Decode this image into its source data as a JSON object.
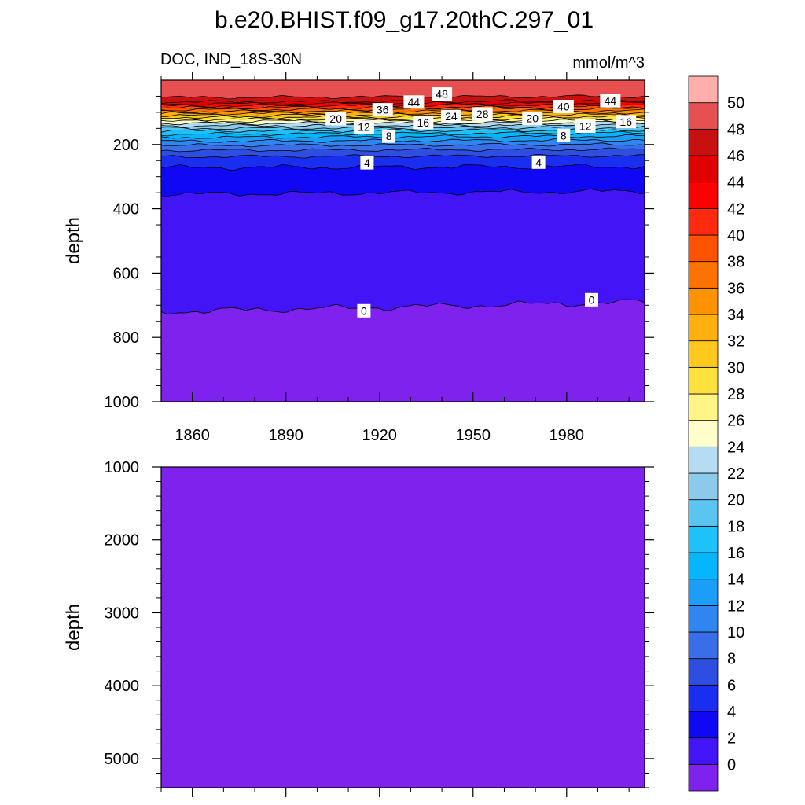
{
  "figure": {
    "title": "b.e20.BHIST.f09_g17.20thC.297_01",
    "subtitle_left": "DOC, IND_18S-30N",
    "subtitle_right": "mmol/m^3"
  },
  "chart_data": [
    {
      "type": "heatmap",
      "panel": "upper",
      "title": "DOC, IND_18S-30N",
      "units": "mmol/m^3",
      "xlabel": "",
      "ylabel": "depth",
      "xlim": [
        1850,
        2005
      ],
      "ylim": [
        1000,
        0
      ],
      "y_inverted": true,
      "x_ticks": [
        1860,
        1890,
        1920,
        1950,
        1980
      ],
      "y_ticks": [
        200,
        400,
        600,
        800,
        1000
      ],
      "contour_lines": [
        {
          "level": 0,
          "depth_start": 720,
          "depth_end": 690
        },
        {
          "level": 2,
          "depth_start": 355,
          "depth_end": 345
        },
        {
          "level": 4,
          "depth_start": 272,
          "depth_end": 268
        },
        {
          "level": 6,
          "depth_start": 238,
          "depth_end": 235
        },
        {
          "level": 8,
          "depth_start": 218,
          "depth_end": 215
        },
        {
          "level": 10,
          "depth_start": 203,
          "depth_end": 200
        },
        {
          "level": 12,
          "depth_start": 190,
          "depth_end": 186
        },
        {
          "level": 14,
          "depth_start": 178,
          "depth_end": 174
        },
        {
          "level": 16,
          "depth_start": 168,
          "depth_end": 164
        },
        {
          "level": 18,
          "depth_start": 158,
          "depth_end": 155
        },
        {
          "level": 20,
          "depth_start": 150,
          "depth_end": 147
        },
        {
          "level": 22,
          "depth_start": 142,
          "depth_end": 139
        },
        {
          "level": 24,
          "depth_start": 135,
          "depth_end": 132
        },
        {
          "level": 26,
          "depth_start": 128,
          "depth_end": 125
        },
        {
          "level": 28,
          "depth_start": 122,
          "depth_end": 119
        },
        {
          "level": 30,
          "depth_start": 116,
          "depth_end": 113
        },
        {
          "level": 32,
          "depth_start": 110,
          "depth_end": 107
        },
        {
          "level": 34,
          "depth_start": 104,
          "depth_end": 101
        },
        {
          "level": 36,
          "depth_start": 98,
          "depth_end": 95
        },
        {
          "level": 38,
          "depth_start": 92,
          "depth_end": 89
        },
        {
          "level": 40,
          "depth_start": 86,
          "depth_end": 83
        },
        {
          "level": 42,
          "depth_start": 80,
          "depth_end": 77
        },
        {
          "level": 44,
          "depth_start": 74,
          "depth_end": 71
        },
        {
          "level": 46,
          "depth_start": 68,
          "depth_end": 65
        },
        {
          "level": 48,
          "depth_start": 54,
          "depth_end": 50
        }
      ],
      "contour_labels": [
        {
          "text": "48",
          "x": 1940,
          "depth": 43
        },
        {
          "text": "44",
          "x": 1931,
          "depth": 68
        },
        {
          "text": "44",
          "x": 1994,
          "depth": 64
        },
        {
          "text": "40",
          "x": 1979,
          "depth": 82
        },
        {
          "text": "36",
          "x": 1921,
          "depth": 92
        },
        {
          "text": "28",
          "x": 1953,
          "depth": 105
        },
        {
          "text": "24",
          "x": 1943,
          "depth": 113
        },
        {
          "text": "20",
          "x": 1906,
          "depth": 120
        },
        {
          "text": "20",
          "x": 1969,
          "depth": 119
        },
        {
          "text": "16",
          "x": 1934,
          "depth": 132
        },
        {
          "text": "16",
          "x": 1999,
          "depth": 129
        },
        {
          "text": "12",
          "x": 1915,
          "depth": 146
        },
        {
          "text": "12",
          "x": 1986,
          "depth": 143
        },
        {
          "text": "8",
          "x": 1923,
          "depth": 174
        },
        {
          "text": "8",
          "x": 1979,
          "depth": 172
        },
        {
          "text": "4",
          "x": 1916,
          "depth": 257
        },
        {
          "text": "4",
          "x": 1971,
          "depth": 255
        },
        {
          "text": "0",
          "x": 1915,
          "depth": 717
        },
        {
          "text": "0",
          "x": 1988,
          "depth": 683
        }
      ]
    },
    {
      "type": "heatmap",
      "panel": "lower",
      "xlabel": "",
      "ylabel": "depth",
      "xlim": [
        1850,
        2005
      ],
      "ylim": [
        5400,
        1000
      ],
      "y_inverted": true,
      "y_ticks": [
        1000,
        2000,
        3000,
        4000,
        5000
      ],
      "fill_level": "< 0"
    }
  ],
  "colorbar": {
    "labels": [
      "0",
      "2",
      "4",
      "6",
      "8",
      "10",
      "12",
      "14",
      "16",
      "18",
      "20",
      "22",
      "24",
      "26",
      "28",
      "30",
      "32",
      "34",
      "36",
      "38",
      "40",
      "42",
      "44",
      "46",
      "48",
      "50"
    ],
    "colors": [
      "#7f22ee",
      "#4314f5",
      "#1008f5",
      "#1a2ef0",
      "#2e4ee0",
      "#3a6ee8",
      "#2f86f0",
      "#1c9df7",
      "#06b6fd",
      "#1cc2f8",
      "#59c5f0",
      "#8ccaeb",
      "#b4dcf2",
      "#ffffcc",
      "#fff486",
      "#ffe13e",
      "#ffc81e",
      "#ffb00e",
      "#ff9200",
      "#fe7200",
      "#ff5200",
      "#ff2a10",
      "#ff0000",
      "#e00000",
      "#c81010",
      "#e65050",
      "#ffaeae"
    ]
  }
}
